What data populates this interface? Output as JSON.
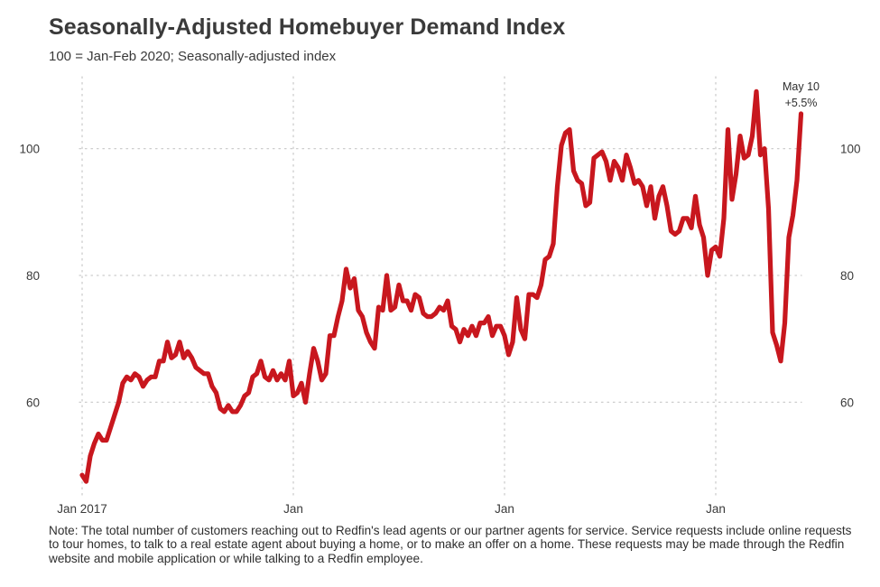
{
  "title": "Seasonally-Adjusted Homebuyer Demand Index",
  "subtitle": "100 = Jan-Feb 2020; Seasonally-adjusted index",
  "note": "Note: The total number of customers reaching out to Redfin's lead agents or our partner agents for service. Service requests include online requests to tour homes, to talk to a real estate agent about buying a home, or to make an offer on a home. These requests may be made through the Redfin website and mobile application or while talking to a Redfin employee.",
  "annotation": {
    "date": "May 10",
    "change": "+5.5%"
  },
  "colors": {
    "line": "#c8171e",
    "grid": "#cccccc",
    "text": "#3a3a3a"
  },
  "chart_data": {
    "type": "line",
    "title": "Seasonally-Adjusted Homebuyer Demand Index",
    "subtitle": "100 = Jan-Feb 2020; Seasonally-adjusted index",
    "xlabel": "",
    "ylabel": "",
    "ylim": [
      46,
      109.5
    ],
    "yticks": [
      60,
      80,
      100
    ],
    "x_ticks": [
      {
        "label": "Jan 2017",
        "index": 0
      },
      {
        "label": "Jan",
        "index": 52
      },
      {
        "label": "Jan",
        "index": 104
      },
      {
        "label": "Jan",
        "index": 156
      }
    ],
    "grid": true,
    "series": [
      {
        "values": [
          48.5,
          47.5,
          51.5,
          53.5,
          55,
          54,
          54,
          56,
          58,
          60,
          63,
          64,
          63.5,
          64.5,
          64,
          62.5,
          63.5,
          64,
          64,
          66.5,
          66.5,
          69.5,
          67,
          67.5,
          69.5,
          67,
          68,
          67,
          65.5,
          65,
          64.5,
          64.5,
          62.5,
          61.5,
          59,
          58.5,
          59.5,
          58.5,
          58.5,
          59.5,
          61,
          61.5,
          64,
          64.5,
          66.5,
          64,
          63.5,
          65,
          63.5,
          64.5,
          63.5,
          66.5,
          61,
          61.5,
          63,
          60,
          64.5,
          68.5,
          66.5,
          63.5,
          64.5,
          70.5,
          70.5,
          73.5,
          76,
          81,
          78,
          79.5,
          74.5,
          73.5,
          71,
          69.5,
          68.5,
          75,
          74.5,
          80,
          74.5,
          75,
          78.5,
          76,
          76,
          74.5,
          77,
          76.5,
          74,
          73.5,
          73.5,
          74,
          75,
          74.5,
          76,
          72,
          71.5,
          69.5,
          71.5,
          70.5,
          72,
          70.5,
          72.5,
          72.5,
          73.5,
          70.5,
          72,
          72,
          70.5,
          67.5,
          69.5,
          76.5,
          71.5,
          70,
          77,
          77,
          76.5,
          78.5,
          82.5,
          83,
          85,
          94,
          100.5,
          102.5,
          103,
          96.5,
          95,
          94.5,
          91,
          91.5,
          98.5,
          99,
          99.5,
          98,
          95,
          98,
          97,
          95,
          99,
          97,
          94.5,
          95,
          94,
          91,
          94,
          89,
          92.5,
          94,
          91,
          87,
          86.5,
          87,
          89,
          89,
          87.5,
          92.5,
          88,
          86,
          80,
          84,
          84.5,
          83,
          89,
          103,
          92,
          96,
          102,
          98.5,
          99,
          102,
          109,
          99,
          100,
          90.5,
          71,
          69,
          66.5,
          72.5,
          86,
          89.5,
          95,
          105.5
        ]
      }
    ]
  }
}
